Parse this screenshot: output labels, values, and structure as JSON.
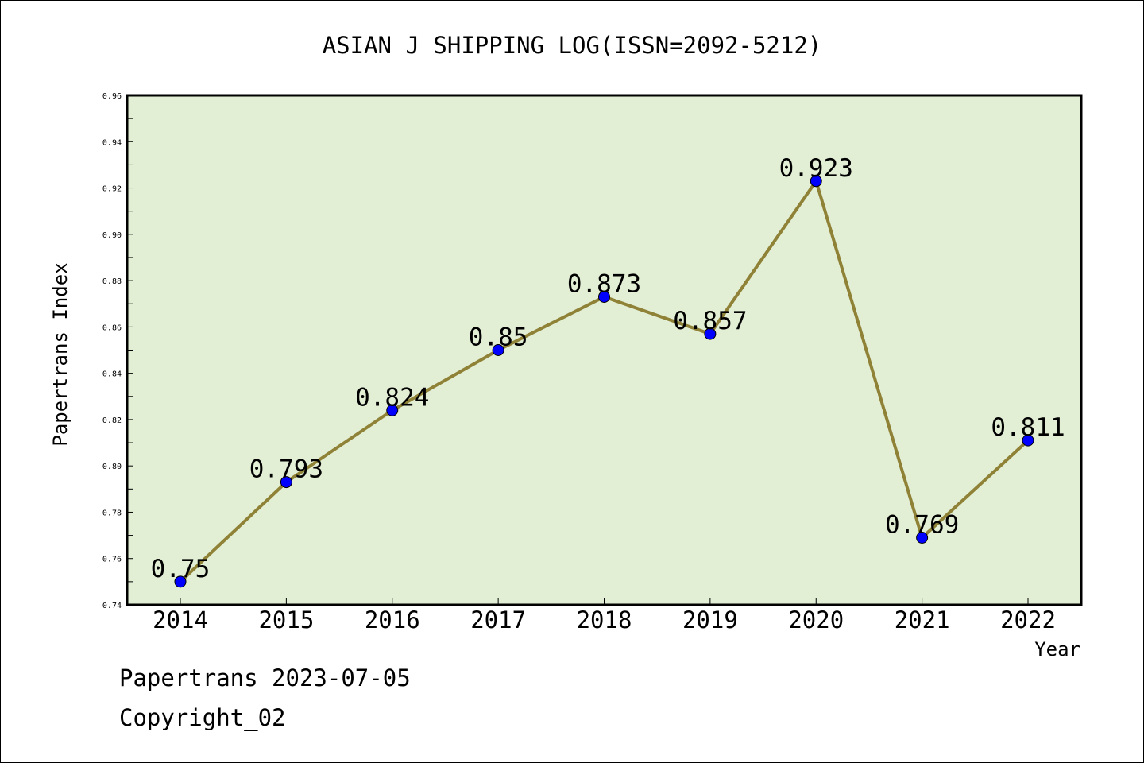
{
  "chart_data": {
    "type": "line",
    "title": "ASIAN J SHIPPING LOG(ISSN=2092-5212)",
    "xlabel": "Year",
    "ylabel": "Papertrans Index",
    "categories": [
      "2014",
      "2015",
      "2016",
      "2017",
      "2018",
      "2019",
      "2020",
      "2021",
      "2022"
    ],
    "series": [
      {
        "values": [
          0.75,
          0.793,
          0.824,
          0.85,
          0.873,
          0.857,
          0.923,
          0.769,
          0.811
        ],
        "labels": [
          "0.75",
          "0.793",
          "0.824",
          "0.85",
          "0.873",
          "0.857",
          "0.923",
          "0.769",
          "0.811"
        ]
      }
    ],
    "ylim": [
      0.74,
      0.96
    ],
    "yticks": [
      "0.74",
      "0.76",
      "0.78",
      "0.80",
      "0.82",
      "0.84",
      "0.86",
      "0.88",
      "0.90",
      "0.92",
      "0.94",
      "0.96"
    ],
    "grid": false,
    "colors": {
      "plot_background": "#e2efd5",
      "line": "#8f8237",
      "marker": "#0000ff",
      "axis": "#000000"
    }
  },
  "footer": {
    "date_line": "Papertrans 2023-07-05",
    "copyright_line": "Copyright_02"
  }
}
